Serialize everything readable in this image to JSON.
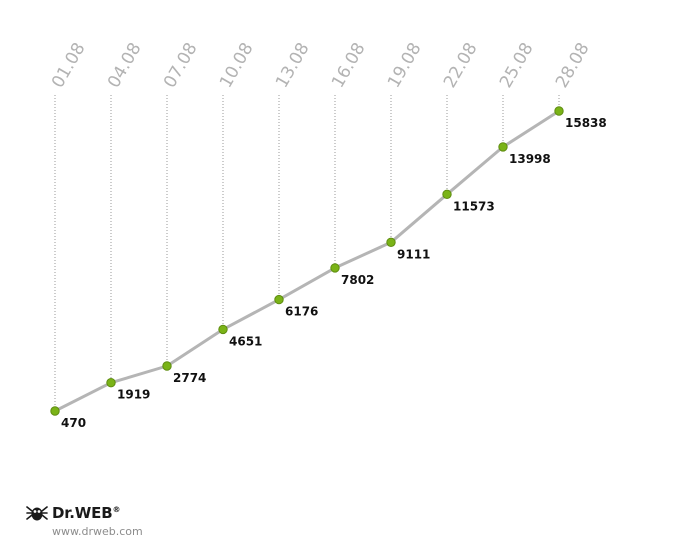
{
  "chart_data": {
    "type": "line",
    "categories": [
      "01.08",
      "04.08",
      "07.08",
      "10.08",
      "13.08",
      "16.08",
      "19.08",
      "22.08",
      "25.08",
      "28.08"
    ],
    "values": [
      470,
      1919,
      2774,
      4651,
      6176,
      7802,
      9111,
      11573,
      13998,
      15838
    ],
    "data_labels": [
      "470",
      "1919",
      "2774",
      "4651",
      "6176",
      "7802",
      "9111",
      "11573",
      "13998",
      "15838"
    ],
    "ylim": [
      470,
      15838
    ],
    "grid": "vertical dotted lines at each category",
    "legend": "none",
    "colors": {
      "line": "#b5b5b5",
      "marker": "#7ab317",
      "marker_edge": "#5e8c10",
      "grid": "#9a9a9a",
      "tick_text": "#b3b3b3"
    }
  },
  "branding": {
    "logo_text": "Dr.WEB",
    "registered_mark": "®",
    "url": "www.drweb.com",
    "icon": "spider-icon"
  }
}
